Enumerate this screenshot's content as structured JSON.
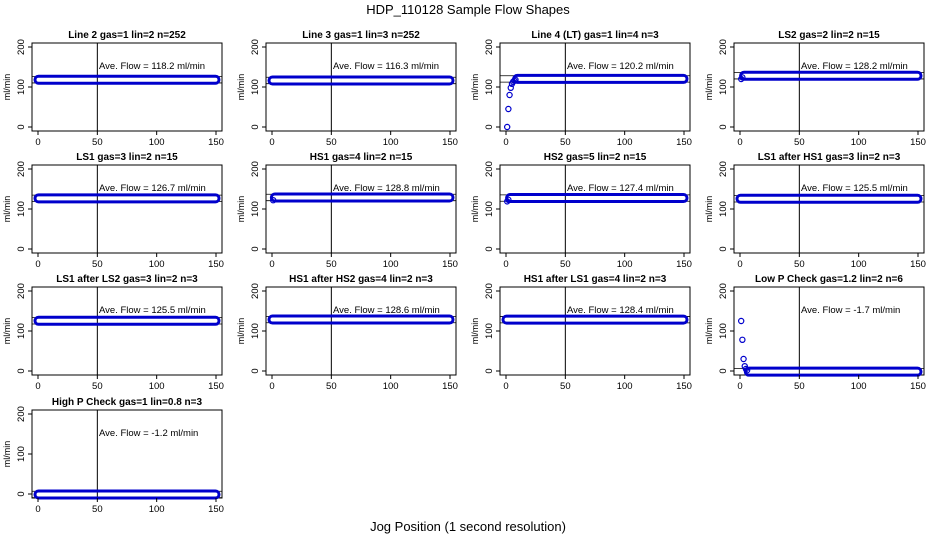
{
  "title": "HDP_110128  Sample Flow Shapes",
  "x_caption": "Jog Position (1 second resolution)",
  "colors": {
    "points": "#0000cc",
    "axes": "#000000"
  },
  "chart_data": [
    {
      "type": "scatter",
      "title": "Line 2 gas=1 lin=2 n=252",
      "annotation": "Ave. Flow =  118.2  ml/min",
      "mean": 118.2,
      "ylabel": "ml/min",
      "xlim": [
        0,
        150
      ],
      "ylim": [
        -10,
        210
      ],
      "xticks": [
        "0",
        "50",
        "100",
        "150"
      ],
      "yticks": [
        "0",
        "100",
        "200"
      ],
      "points": []
    },
    {
      "type": "scatter",
      "title": "Line 3 gas=1 lin=3 n=252",
      "annotation": "Ave. Flow =  116.3  ml/min",
      "mean": 116.3,
      "ylabel": "ml/min",
      "xlim": [
        0,
        150
      ],
      "ylim": [
        -10,
        210
      ],
      "xticks": [
        "0",
        "50",
        "100",
        "150"
      ],
      "yticks": [
        "0",
        "100",
        "200"
      ],
      "points": []
    },
    {
      "type": "scatter",
      "title": "Line 4 (LT) gas=1 lin=4 n=3",
      "annotation": "Ave. Flow =  120.2  ml/min",
      "mean": 120.2,
      "ylabel": "ml/min",
      "xlim": [
        0,
        150
      ],
      "ylim": [
        -10,
        210
      ],
      "xticks": [
        "0",
        "50",
        "100",
        "150"
      ],
      "yticks": [
        "0",
        "100",
        "200"
      ],
      "points": [
        [
          1,
          0
        ],
        [
          2,
          45
        ],
        [
          3,
          80
        ],
        [
          4,
          98
        ],
        [
          5,
          108
        ],
        [
          6,
          113
        ],
        [
          7,
          116
        ],
        [
          8,
          118
        ]
      ]
    },
    {
      "type": "scatter",
      "title": "LS2 gas=2 lin=2 n=15",
      "annotation": "Ave. Flow =  128.2  ml/min",
      "mean": 128.2,
      "ylabel": "ml/min",
      "xlim": [
        0,
        150
      ],
      "ylim": [
        -10,
        210
      ],
      "xticks": [
        "0",
        "50",
        "100",
        "150"
      ],
      "yticks": [
        "0",
        "100",
        "200"
      ],
      "points": [
        [
          1,
          120
        ],
        [
          2,
          124
        ]
      ]
    },
    {
      "type": "scatter",
      "title": "LS1 gas=3 lin=2 n=15",
      "annotation": "Ave. Flow =  126.7  ml/min",
      "mean": 126.7,
      "ylabel": "ml/min",
      "xlim": [
        0,
        150
      ],
      "ylim": [
        -10,
        210
      ],
      "xticks": [
        "0",
        "50",
        "100",
        "150"
      ],
      "yticks": [
        "0",
        "100",
        "200"
      ],
      "points": []
    },
    {
      "type": "scatter",
      "title": "HS1 gas=4 lin=2 n=15",
      "annotation": "Ave. Flow =  128.8  ml/min",
      "mean": 128.8,
      "ylabel": "ml/min",
      "xlim": [
        0,
        150
      ],
      "ylim": [
        -10,
        210
      ],
      "xticks": [
        "0",
        "50",
        "100",
        "150"
      ],
      "yticks": [
        "0",
        "100",
        "200"
      ],
      "points": [
        [
          1,
          122
        ]
      ]
    },
    {
      "type": "scatter",
      "title": "HS2 gas=5 lin=2 n=15",
      "annotation": "Ave. Flow =  127.4  ml/min",
      "mean": 127.4,
      "ylabel": "ml/min",
      "xlim": [
        0,
        150
      ],
      "ylim": [
        -10,
        210
      ],
      "xticks": [
        "0",
        "50",
        "100",
        "150"
      ],
      "yticks": [
        "0",
        "100",
        "200"
      ],
      "points": [
        [
          1,
          119
        ],
        [
          2,
          123
        ]
      ]
    },
    {
      "type": "scatter",
      "title": "LS1 after HS1 gas=3 lin=2 n=3",
      "annotation": "Ave. Flow =  125.5  ml/min",
      "mean": 125.5,
      "ylabel": "ml/min",
      "xlim": [
        0,
        150
      ],
      "ylim": [
        -10,
        210
      ],
      "xticks": [
        "0",
        "50",
        "100",
        "150"
      ],
      "yticks": [
        "0",
        "100",
        "200"
      ],
      "points": []
    },
    {
      "type": "scatter",
      "title": "LS1 after LS2 gas=3 lin=2 n=3",
      "annotation": "Ave. Flow =  125.5  ml/min",
      "mean": 125.5,
      "ylabel": "ml/min",
      "xlim": [
        0,
        150
      ],
      "ylim": [
        -10,
        210
      ],
      "xticks": [
        "0",
        "50",
        "100",
        "150"
      ],
      "yticks": [
        "0",
        "100",
        "200"
      ],
      "points": []
    },
    {
      "type": "scatter",
      "title": "HS1 after HS2 gas=4 lin=2 n=3",
      "annotation": "Ave. Flow =  128.6  ml/min",
      "mean": 128.6,
      "ylabel": "ml/min",
      "xlim": [
        0,
        150
      ],
      "ylim": [
        -10,
        210
      ],
      "xticks": [
        "0",
        "50",
        "100",
        "150"
      ],
      "yticks": [
        "0",
        "100",
        "200"
      ],
      "points": []
    },
    {
      "type": "scatter",
      "title": "HS1 after LS1 gas=4 lin=2 n=3",
      "annotation": "Ave. Flow =  128.4  ml/min",
      "mean": 128.4,
      "ylabel": "ml/min",
      "xlim": [
        0,
        150
      ],
      "ylim": [
        -10,
        210
      ],
      "xticks": [
        "0",
        "50",
        "100",
        "150"
      ],
      "yticks": [
        "0",
        "100",
        "200"
      ],
      "points": []
    },
    {
      "type": "scatter",
      "title": "Low P Check gas=1.2 lin=2 n=6",
      "annotation": "Ave. Flow =  -1.7  ml/min",
      "mean": -1.7,
      "ylabel": "ml/min",
      "xlim": [
        0,
        150
      ],
      "ylim": [
        -10,
        210
      ],
      "xticks": [
        "0",
        "50",
        "100",
        "150"
      ],
      "yticks": [
        "0",
        "100",
        "200"
      ],
      "points": [
        [
          1,
          125
        ],
        [
          2,
          78
        ],
        [
          3,
          30
        ],
        [
          4,
          12
        ],
        [
          5,
          5
        ],
        [
          6,
          2
        ]
      ]
    },
    {
      "type": "scatter",
      "title": "High P Check gas=1 lin=0.8 n=3",
      "annotation": "Ave. Flow =  -1.2  ml/min",
      "mean": -1.2,
      "ylabel": "ml/min",
      "xlim": [
        0,
        150
      ],
      "ylim": [
        -10,
        210
      ],
      "xticks": [
        "0",
        "50",
        "100",
        "150"
      ],
      "yticks": [
        "0",
        "100",
        "200"
      ],
      "points": []
    }
  ]
}
